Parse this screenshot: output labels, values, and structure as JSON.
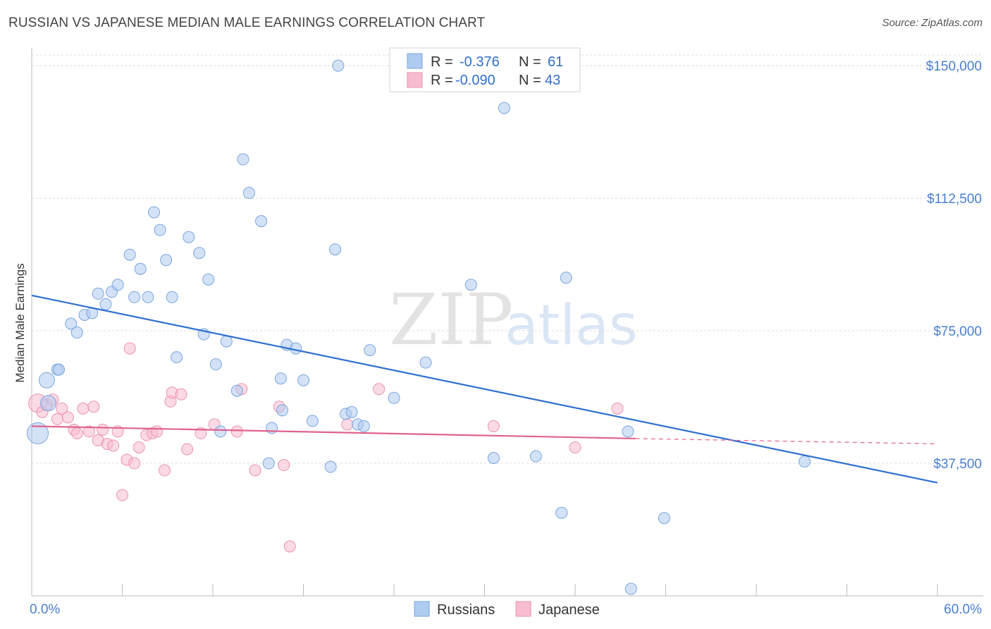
{
  "header": {
    "title": "RUSSIAN VS JAPANESE MEDIAN MALE EARNINGS CORRELATION CHART",
    "source": "Source: ZipAtlas.com"
  },
  "legend": {
    "russians": {
      "r_label": "R =",
      "r_value": "-0.376",
      "n_label": "N =",
      "n_value": "61"
    },
    "japanese": {
      "r_label": "R =",
      "r_value": "-0.090",
      "n_label": "N =",
      "n_value": "43"
    }
  },
  "bottom_legend": {
    "russians": "Russians",
    "japanese": "Japanese"
  },
  "colors": {
    "russians_fill": "#aecbf0",
    "russians_stroke": "#7aa6dd",
    "russians_line": "#2f6fcf",
    "japanese_fill": "#f7bcd0",
    "japanese_stroke": "#ea93b2",
    "japanese_line": "#e0628e",
    "grid": "#dcdcdc",
    "tick_label": "#4a7fcf"
  },
  "chart_data": {
    "type": "scatter",
    "title": "RUSSIAN VS JAPANESE MEDIAN MALE EARNINGS CORRELATION CHART",
    "xlabel": "",
    "ylabel": "Median Male Earnings",
    "xlim": [
      0,
      60
    ],
    "ylim": [
      0,
      155000
    ],
    "x_tick_labels": [
      "0.0%",
      "60.0%"
    ],
    "y_ticks": [
      37500,
      75000,
      112500,
      150000
    ],
    "y_tick_labels": [
      "$37,500",
      "$75,000",
      "$112,500",
      "$150,000"
    ],
    "grid": true,
    "legend_position": "top-center",
    "watermark": {
      "zip": "ZIP",
      "atlas": "atlas"
    },
    "series": [
      {
        "name": "Russians",
        "r": -0.376,
        "n": 61,
        "trend": {
          "x0": 0,
          "y0": 85000,
          "x1": 60,
          "y1": 32000
        },
        "points": [
          [
            0.4,
            46000,
            30
          ],
          [
            1.0,
            61000,
            22
          ],
          [
            1.1,
            54500,
            22
          ],
          [
            1.7,
            64000,
            16
          ],
          [
            1.8,
            64000,
            16
          ],
          [
            2.6,
            77000,
            16
          ],
          [
            3.0,
            74500,
            16
          ],
          [
            3.5,
            79500,
            16
          ],
          [
            4.0,
            80000,
            16
          ],
          [
            4.4,
            85500,
            16
          ],
          [
            4.9,
            82500,
            16
          ],
          [
            5.3,
            86000,
            16
          ],
          [
            5.7,
            88000,
            16
          ],
          [
            6.5,
            96500,
            16
          ],
          [
            6.8,
            84500,
            16
          ],
          [
            7.2,
            92500,
            16
          ],
          [
            7.7,
            84500,
            16
          ],
          [
            8.1,
            108500,
            16
          ],
          [
            8.5,
            103500,
            16
          ],
          [
            8.9,
            95000,
            16
          ],
          [
            9.3,
            84500,
            16
          ],
          [
            9.6,
            67500,
            16
          ],
          [
            10.4,
            101500,
            16
          ],
          [
            11.1,
            97000,
            16
          ],
          [
            11.4,
            74000,
            16
          ],
          [
            11.7,
            89500,
            16
          ],
          [
            12.2,
            65500,
            16
          ],
          [
            12.5,
            46500,
            16
          ],
          [
            12.9,
            72000,
            16
          ],
          [
            13.6,
            58000,
            16
          ],
          [
            14.0,
            123500,
            16
          ],
          [
            14.4,
            114000,
            16
          ],
          [
            15.2,
            106000,
            16
          ],
          [
            15.7,
            37500,
            16
          ],
          [
            15.9,
            47500,
            16
          ],
          [
            16.5,
            61500,
            16
          ],
          [
            16.6,
            52500,
            16
          ],
          [
            16.9,
            71000,
            16
          ],
          [
            17.5,
            70000,
            16
          ],
          [
            18.0,
            61000,
            16
          ],
          [
            18.6,
            49500,
            16
          ],
          [
            19.8,
            36500,
            16
          ],
          [
            20.1,
            98000,
            16
          ],
          [
            20.3,
            150000,
            16
          ],
          [
            20.8,
            51500,
            16
          ],
          [
            21.2,
            52000,
            16
          ],
          [
            21.6,
            48500,
            16
          ],
          [
            22.0,
            48000,
            16
          ],
          [
            22.4,
            69500,
            16
          ],
          [
            24.0,
            56000,
            16
          ],
          [
            26.1,
            66000,
            16
          ],
          [
            29.1,
            88000,
            16
          ],
          [
            30.6,
            39000,
            16
          ],
          [
            31.3,
            138000,
            16
          ],
          [
            33.4,
            39500,
            16
          ],
          [
            35.1,
            23500,
            16
          ],
          [
            35.4,
            90000,
            16
          ],
          [
            39.5,
            46500,
            16
          ],
          [
            39.7,
            2000,
            16
          ],
          [
            41.9,
            22000,
            16
          ],
          [
            51.2,
            38000,
            16
          ]
        ]
      },
      {
        "name": "Japanese",
        "r": -0.09,
        "n": 43,
        "trend": {
          "x0": 0,
          "y0": 48000,
          "x1": 40,
          "y1": 44500,
          "dash_to_x": 60,
          "dash_to_y": 43000
        },
        "points": [
          [
            0.4,
            54500,
            26
          ],
          [
            0.7,
            52000,
            16
          ],
          [
            1.0,
            54000,
            16
          ],
          [
            1.4,
            55500,
            16
          ],
          [
            1.7,
            50000,
            16
          ],
          [
            2.0,
            53000,
            16
          ],
          [
            2.4,
            50500,
            16
          ],
          [
            2.8,
            47000,
            16
          ],
          [
            3.0,
            46000,
            16
          ],
          [
            3.4,
            53000,
            16
          ],
          [
            3.8,
            46500,
            16
          ],
          [
            4.1,
            53500,
            16
          ],
          [
            4.4,
            44000,
            16
          ],
          [
            4.7,
            47000,
            16
          ],
          [
            5.0,
            43000,
            16
          ],
          [
            5.4,
            42500,
            16
          ],
          [
            5.7,
            46500,
            16
          ],
          [
            6.0,
            28500,
            16
          ],
          [
            6.3,
            38500,
            16
          ],
          [
            6.5,
            70000,
            16
          ],
          [
            6.8,
            37500,
            16
          ],
          [
            7.1,
            42000,
            16
          ],
          [
            7.6,
            45500,
            16
          ],
          [
            8.0,
            46000,
            16
          ],
          [
            8.3,
            46500,
            16
          ],
          [
            8.8,
            35500,
            16
          ],
          [
            9.2,
            55000,
            16
          ],
          [
            9.3,
            57500,
            16
          ],
          [
            9.9,
            57000,
            16
          ],
          [
            10.3,
            41500,
            16
          ],
          [
            11.2,
            46000,
            16
          ],
          [
            12.1,
            48500,
            16
          ],
          [
            13.6,
            46500,
            16
          ],
          [
            13.9,
            58500,
            16
          ],
          [
            14.8,
            35500,
            16
          ],
          [
            16.4,
            53500,
            16
          ],
          [
            16.7,
            37000,
            16
          ],
          [
            17.1,
            14000,
            16
          ],
          [
            20.9,
            48500,
            16
          ],
          [
            23.0,
            58500,
            16
          ],
          [
            30.6,
            48000,
            16
          ],
          [
            36.0,
            42000,
            16
          ],
          [
            38.8,
            53000,
            16
          ]
        ]
      }
    ]
  }
}
